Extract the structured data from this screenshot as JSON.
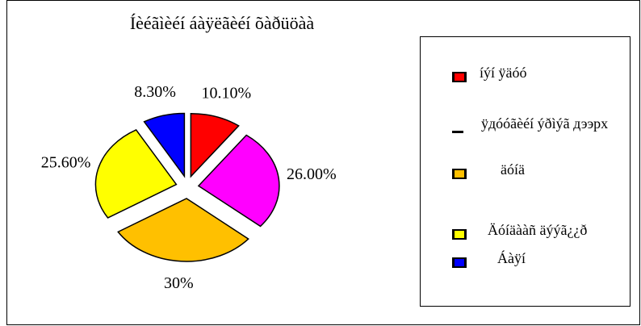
{
  "chart_data": {
    "type": "pie",
    "title": "Íèéãìèéí áàÿëãèéí õàðüöàà",
    "categories": [
      "íýí ÿäóó",
      "ÿдóóãèéí ýðìýã дээрх",
      "äóíä",
      "Äóíäààñ äýýã¿¿ð",
      "Áàÿí"
    ],
    "values": [
      10.1,
      26.0,
      30,
      25.6,
      8.3
    ],
    "value_labels": [
      "10.10%",
      "26.00%",
      "30%",
      "25.60%",
      "8.30%"
    ],
    "colors": [
      "#ff0000",
      "#ff00ff",
      "#ffc000",
      "#ffff00",
      "#0000ff"
    ],
    "legend": "right"
  }
}
